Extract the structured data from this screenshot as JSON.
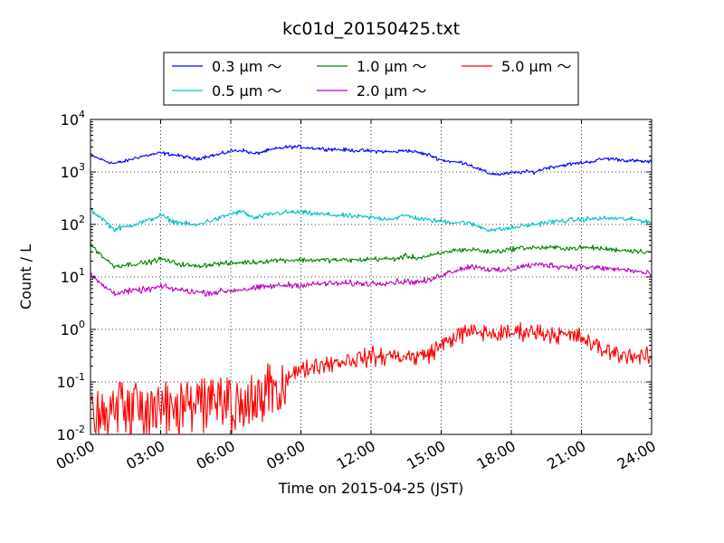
{
  "chart_data": {
    "type": "line",
    "title": "kc01d_20150425.txt",
    "xlabel": "Time on 2015-04-25 (JST)",
    "ylabel": "Count / L",
    "yscale": "log",
    "ylim": [
      0.01,
      10000
    ],
    "xlim": [
      0,
      24
    ],
    "x_unit": "hours",
    "grid": true,
    "legend_position": "top-center, above plot",
    "x_tick_labels": [
      "00:00",
      "03:00",
      "06:00",
      "09:00",
      "12:00",
      "15:00",
      "18:00",
      "21:00",
      "24:00"
    ],
    "x_ticks": [
      0,
      3,
      6,
      9,
      12,
      15,
      18,
      21,
      24
    ],
    "y_ticks": [
      {
        "value": 0.01,
        "base": "10",
        "exp": "-2"
      },
      {
        "value": 0.1,
        "base": "10",
        "exp": "-1"
      },
      {
        "value": 1,
        "base": "10",
        "exp": "0"
      },
      {
        "value": 10,
        "base": "10",
        "exp": "1"
      },
      {
        "value": 100,
        "base": "10",
        "exp": "2"
      },
      {
        "value": 1000,
        "base": "10",
        "exp": "3"
      },
      {
        "value": 10000,
        "base": "10",
        "exp": "4"
      }
    ],
    "x": [
      0,
      0.5,
      1,
      1.5,
      2,
      2.5,
      3,
      3.5,
      4,
      4.5,
      5,
      5.5,
      6,
      6.5,
      7,
      7.5,
      8,
      8.5,
      9,
      9.5,
      10,
      10.5,
      11,
      11.5,
      12,
      12.5,
      13,
      13.5,
      14,
      14.5,
      15,
      15.5,
      16,
      16.5,
      17,
      17.5,
      18,
      18.5,
      19,
      19.5,
      20,
      20.5,
      21,
      21.5,
      22,
      22.5,
      23,
      23.5,
      24
    ],
    "series": [
      {
        "name": "0.3 μm ～",
        "color": "#0000ff",
        "noise": 0.03,
        "values": [
          2100,
          1700,
          1450,
          1600,
          1900,
          2100,
          2300,
          2150,
          1950,
          1750,
          2000,
          2150,
          2500,
          2600,
          2200,
          2500,
          2800,
          3000,
          3000,
          2850,
          2750,
          2700,
          2600,
          2550,
          2500,
          2450,
          2400,
          2600,
          2350,
          2100,
          1700,
          1550,
          1500,
          1200,
          950,
          900,
          950,
          1000,
          1000,
          1200,
          1300,
          1400,
          1500,
          1600,
          1800,
          1750,
          1650,
          1600,
          1550
        ]
      },
      {
        "name": "0.5 μm ～",
        "color": "#00bfbf",
        "noise": 0.04,
        "values": [
          190,
          130,
          80,
          90,
          105,
          120,
          150,
          115,
          105,
          95,
          115,
          130,
          160,
          175,
          130,
          150,
          165,
          170,
          170,
          160,
          155,
          150,
          145,
          140,
          135,
          130,
          130,
          150,
          130,
          120,
          115,
          110,
          110,
          95,
          80,
          80,
          85,
          95,
          100,
          110,
          115,
          120,
          125,
          128,
          130,
          130,
          125,
          120,
          110
        ]
      },
      {
        "name": "1.0 μm ～",
        "color": "#008000",
        "noise": 0.04,
        "values": [
          42,
          25,
          16,
          17,
          18,
          19,
          22,
          19,
          17,
          16,
          17,
          18,
          18,
          19,
          19,
          20,
          21,
          21,
          21,
          21,
          21,
          21,
          21,
          21,
          22,
          22,
          22,
          25,
          23,
          25,
          28,
          32,
          33,
          33,
          30,
          31,
          34,
          36,
          36,
          36,
          36,
          35,
          36,
          36,
          34,
          33,
          32,
          31,
          30
        ]
      },
      {
        "name": "2.0 μm ～",
        "color": "#bf00bf",
        "noise": 0.05,
        "values": [
          11,
          7,
          5,
          5.2,
          5.5,
          5.8,
          6.5,
          6.0,
          5.5,
          5.2,
          5.0,
          5.2,
          5.5,
          5.8,
          6.0,
          6.5,
          6.8,
          7.0,
          7.0,
          7.2,
          7.5,
          7.5,
          7.5,
          7.5,
          7.5,
          7.8,
          8.0,
          8.2,
          8.0,
          8.5,
          11,
          13,
          15,
          16,
          14,
          13,
          14,
          16,
          17,
          17,
          16,
          15.5,
          15.5,
          15,
          14.5,
          14,
          13.5,
          12.5,
          11
        ]
      },
      {
        "name": "5.0 μm ～",
        "color": "#ff0000",
        "noise": 0.15,
        "spiky": true,
        "values": [
          0.03,
          0.025,
          0.03,
          0.03,
          0.03,
          0.03,
          0.03,
          0.03,
          0.03,
          0.03,
          0.035,
          0.035,
          0.035,
          0.04,
          0.05,
          0.06,
          0.1,
          0.14,
          0.16,
          0.2,
          0.22,
          0.24,
          0.26,
          0.28,
          0.3,
          0.3,
          0.32,
          0.3,
          0.3,
          0.35,
          0.5,
          0.7,
          0.85,
          0.9,
          0.85,
          0.8,
          0.85,
          0.95,
          0.9,
          0.85,
          0.8,
          0.75,
          0.7,
          0.5,
          0.4,
          0.35,
          0.33,
          0.3,
          0.28
        ]
      }
    ]
  }
}
